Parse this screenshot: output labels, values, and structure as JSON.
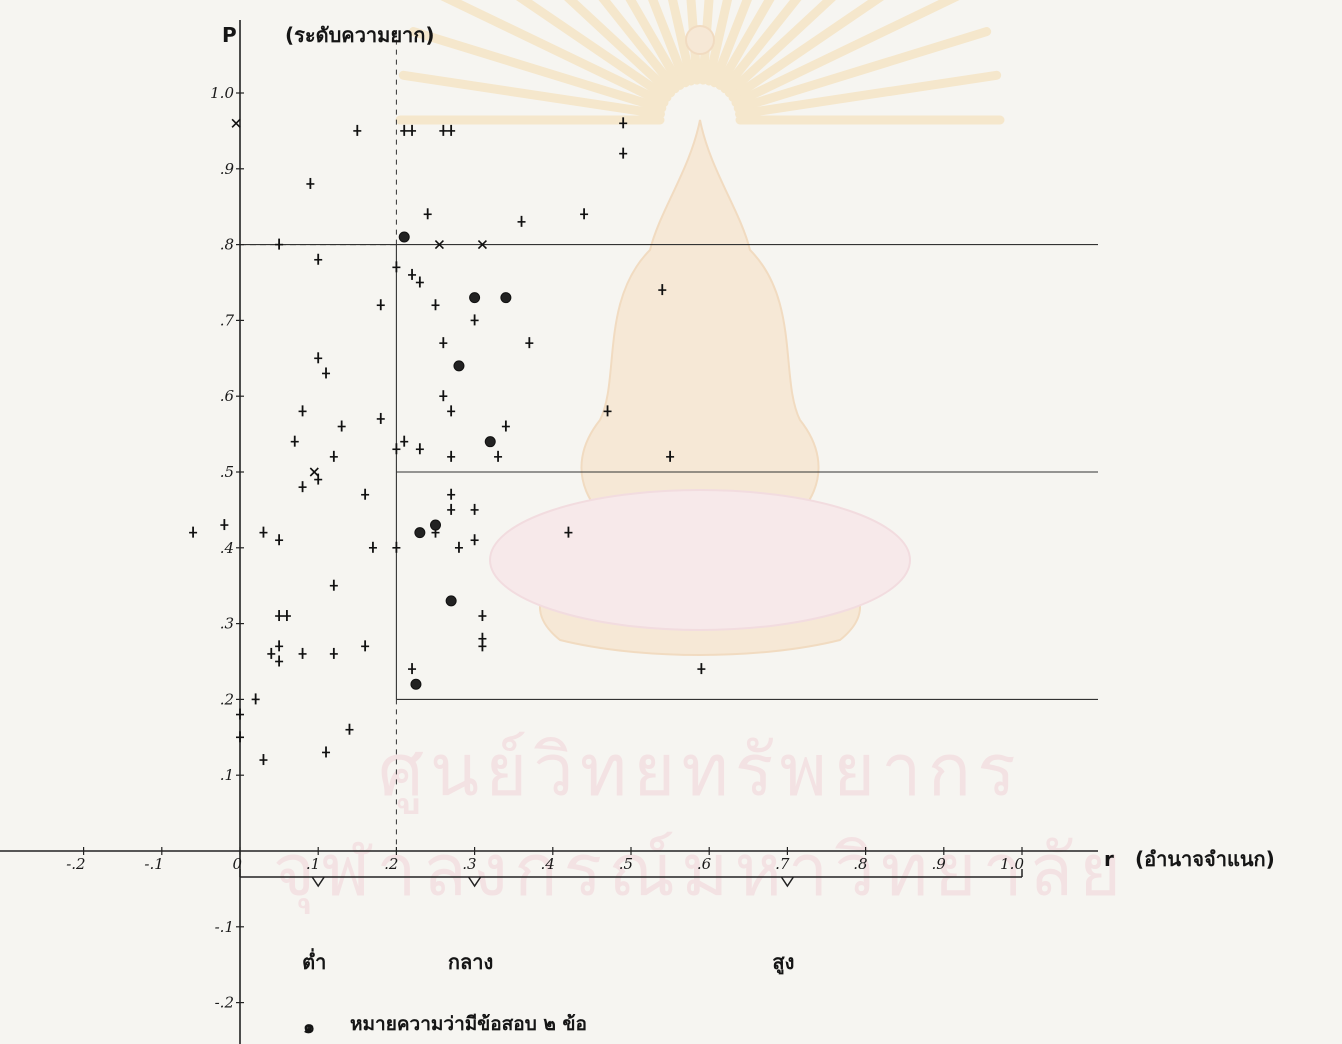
{
  "chart_data": {
    "type": "scatter",
    "title": "",
    "ylabel_symbol": "P",
    "ylabel": "(ระดับความยาก)",
    "xlabel_symbol": "r",
    "xlabel": "(อำนาจจำแนก)",
    "xlim": [
      -0.25,
      1.05
    ],
    "ylim": [
      -0.22,
      1.1
    ],
    "x_tick_labels": [
      "-.2",
      "-.1",
      "0",
      ".1",
      ".2",
      ".3",
      ".4",
      ".5",
      ".6",
      ".7",
      ".8",
      ".9",
      "1.0"
    ],
    "x_tick_values": [
      -0.2,
      -0.1,
      0,
      0.1,
      0.2,
      0.3,
      0.4,
      0.5,
      0.6,
      0.7,
      0.8,
      0.9,
      1.0
    ],
    "y_tick_labels": [
      "-.2",
      "-.1",
      ".1",
      ".2",
      ".3",
      ".4",
      ".5",
      ".6",
      ".7",
      ".8",
      ".9",
      "1.0"
    ],
    "y_tick_values": [
      -0.2,
      -0.1,
      0.1,
      0.2,
      0.3,
      0.4,
      0.5,
      0.6,
      0.7,
      0.8,
      0.9,
      1.0
    ],
    "reference_lines": {
      "horizontal": [
        0.2,
        0.5,
        0.8
      ],
      "vertical": [
        0.2
      ]
    },
    "groups": [
      {
        "label": "ต่ำ",
        "x_from": 0.0,
        "x_to": 0.2,
        "x_mark": 0.1
      },
      {
        "label": "กลาง",
        "x_from": 0.2,
        "x_to": 0.4,
        "x_mark": 0.3
      },
      {
        "label": "สูง",
        "x_from": 0.4,
        "x_to": 1.0,
        "x_mark": 0.7
      }
    ],
    "legend": {
      "symbol": "๑",
      "text": "หมายความว่ามีข้อสอบ ๒ ข้อ"
    },
    "series": [
      {
        "marker": "plus",
        "points": [
          [
            0.0,
            0.15
          ],
          [
            0.09,
            0.88
          ],
          [
            0.15,
            0.95
          ],
          [
            0.21,
            0.95
          ],
          [
            0.22,
            0.95
          ],
          [
            0.26,
            0.95
          ],
          [
            0.27,
            0.95
          ],
          [
            0.49,
            0.96
          ],
          [
            0.49,
            0.92
          ],
          [
            0.05,
            0.8
          ],
          [
            0.1,
            0.78
          ],
          [
            0.24,
            0.84
          ],
          [
            0.36,
            0.83
          ],
          [
            0.44,
            0.84
          ],
          [
            0.2,
            0.77
          ],
          [
            0.22,
            0.76
          ],
          [
            0.23,
            0.75
          ],
          [
            0.25,
            0.72
          ],
          [
            0.18,
            0.72
          ],
          [
            0.3,
            0.7
          ],
          [
            0.1,
            0.65
          ],
          [
            0.11,
            0.63
          ],
          [
            0.37,
            0.67
          ],
          [
            0.26,
            0.67
          ],
          [
            0.54,
            0.74
          ],
          [
            0.08,
            0.58
          ],
          [
            0.13,
            0.56
          ],
          [
            0.18,
            0.57
          ],
          [
            0.26,
            0.6
          ],
          [
            0.27,
            0.58
          ],
          [
            0.34,
            0.56
          ],
          [
            0.47,
            0.58
          ],
          [
            0.07,
            0.54
          ],
          [
            0.1,
            0.49
          ],
          [
            0.12,
            0.52
          ],
          [
            0.21,
            0.54
          ],
          [
            0.2,
            0.53
          ],
          [
            0.23,
            0.53
          ],
          [
            0.27,
            0.52
          ],
          [
            0.33,
            0.52
          ],
          [
            0.55,
            0.52
          ],
          [
            0.08,
            0.48
          ],
          [
            0.16,
            0.47
          ],
          [
            0.27,
            0.47
          ],
          [
            0.27,
            0.45
          ],
          [
            0.3,
            0.45
          ],
          [
            0.03,
            0.42
          ],
          [
            0.05,
            0.41
          ],
          [
            0.25,
            0.42
          ],
          [
            0.3,
            0.41
          ],
          [
            0.42,
            0.42
          ],
          [
            0.17,
            0.4
          ],
          [
            0.2,
            0.4
          ],
          [
            0.28,
            0.4
          ],
          [
            0.12,
            0.35
          ],
          [
            0.05,
            0.31
          ],
          [
            0.06,
            0.31
          ],
          [
            0.04,
            0.26
          ],
          [
            0.05,
            0.27
          ],
          [
            0.05,
            0.25
          ],
          [
            0.08,
            0.26
          ],
          [
            0.12,
            0.26
          ],
          [
            0.16,
            0.27
          ],
          [
            0.31,
            0.31
          ],
          [
            0.31,
            0.28
          ],
          [
            0.31,
            0.27
          ],
          [
            0.22,
            0.24
          ],
          [
            0.59,
            0.24
          ],
          [
            0.02,
            0.2
          ],
          [
            0.0,
            0.18
          ],
          [
            0.14,
            0.16
          ],
          [
            0.11,
            0.13
          ],
          [
            0.03,
            0.12
          ],
          [
            -0.06,
            0.42
          ],
          [
            -0.02,
            0.43
          ]
        ]
      },
      {
        "marker": "cross",
        "points": [
          [
            -0.005,
            0.96
          ],
          [
            0.255,
            0.8
          ],
          [
            0.31,
            0.8
          ],
          [
            0.095,
            0.5
          ]
        ]
      },
      {
        "marker": "circle",
        "points": [
          [
            0.21,
            0.81
          ],
          [
            0.3,
            0.73
          ],
          [
            0.34,
            0.73
          ],
          [
            0.28,
            0.64
          ],
          [
            0.32,
            0.54
          ],
          [
            0.23,
            0.42
          ],
          [
            0.25,
            0.43
          ],
          [
            0.27,
            0.33
          ],
          [
            0.225,
            0.22
          ]
        ]
      }
    ]
  }
}
